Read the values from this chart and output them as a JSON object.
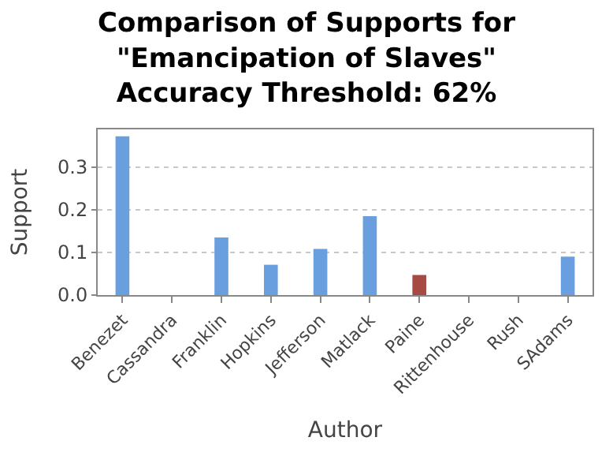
{
  "chart_data": {
    "type": "bar",
    "title": "Comparison of Supports for\n\"Emancipation of Slaves\"\nAccuracy Threshold: 62%",
    "xlabel": "Author",
    "ylabel": "Support",
    "categories": [
      "Benezet",
      "Cassandra",
      "Franklin",
      "Hopkins",
      "Jefferson",
      "Matlack",
      "Paine",
      "Rittenhouse",
      "Rush",
      "SAdams"
    ],
    "values": [
      0.372,
      0,
      0.135,
      0.071,
      0.108,
      0.185,
      0.047,
      0,
      0,
      0.09
    ],
    "colors": [
      "#6a9fdf",
      "#6a9fdf",
      "#6a9fdf",
      "#6a9fdf",
      "#6a9fdf",
      "#6a9fdf",
      "#a84a44",
      "#6a9fdf",
      "#6a9fdf",
      "#6a9fdf"
    ],
    "ylim": [
      0,
      0.388
    ],
    "yticks": [
      {
        "value": 0,
        "label": "0.0"
      },
      0.1,
      0.2,
      0.3
    ],
    "grid": "y"
  }
}
